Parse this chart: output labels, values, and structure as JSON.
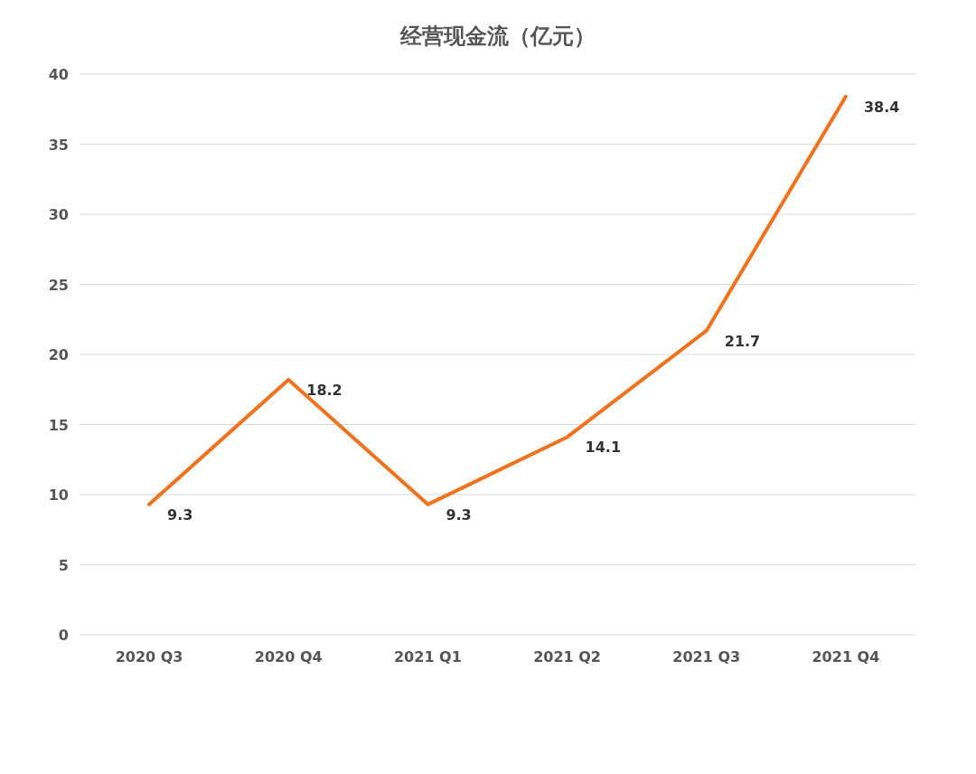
{
  "chart_data": {
    "type": "line",
    "title": "经营现金流（亿元）",
    "categories": [
      "2020 Q3",
      "2020 Q4",
      "2021 Q1",
      "2021 Q2",
      "2021 Q3",
      "2021 Q4"
    ],
    "series": [
      {
        "color": "#f2711c",
        "values": [
          9.3,
          18.2,
          9.3,
          14.1,
          21.7,
          38.4
        ]
      }
    ],
    "ylim": [
      0,
      40
    ],
    "yticks": [
      0,
      5,
      10,
      15,
      20,
      25,
      30,
      35,
      40
    ],
    "grid": "y",
    "data_labels": true,
    "marker": "none",
    "line_style": "solid"
  }
}
